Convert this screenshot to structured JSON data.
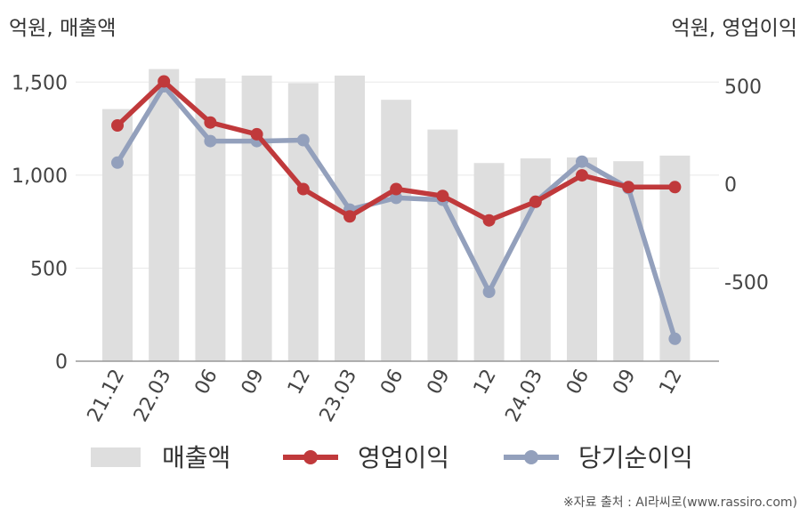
{
  "axis_titles": {
    "left": "억원, 매출액",
    "right": "억원, 영업이익"
  },
  "source": "※자료 출처 : AI라씨로(www.rassiro.com)",
  "colors": {
    "bar": "#dedede",
    "operating_profit": "#c0393b",
    "net_income": "#93a0bc",
    "axis": "#999999",
    "grid": "#e8e8e8"
  },
  "chart_data": {
    "type": "bar+line",
    "categories": [
      "21.12",
      "22.03",
      "06",
      "09",
      "12",
      "23.03",
      "06",
      "09",
      "12",
      "24.03",
      "06",
      "09",
      "12"
    ],
    "left_axis": {
      "ticks": [
        "0",
        "500",
        "1,000",
        "1,500"
      ],
      "ylim": [
        0,
        1750
      ]
    },
    "right_axis": {
      "ticks": [
        "-500",
        "0",
        "500"
      ],
      "ylim": [
        -900,
        600
      ]
    },
    "series": [
      {
        "name": "매출액",
        "type": "bar",
        "axis": "left",
        "values": [
          1355,
          1570,
          1520,
          1535,
          1495,
          1535,
          1405,
          1245,
          1065,
          1090,
          1095,
          1075,
          1105
        ]
      },
      {
        "name": "영업이익",
        "type": "line",
        "axis": "right",
        "values": [
          300,
          525,
          315,
          255,
          -25,
          -165,
          -25,
          -60,
          -185,
          -90,
          45,
          -15,
          -15
        ]
      },
      {
        "name": "당기순이익",
        "type": "line",
        "axis": "right",
        "values": [
          110,
          500,
          220,
          220,
          225,
          -130,
          -70,
          -80,
          -550,
          -90,
          115,
          -20,
          -790
        ]
      }
    ]
  }
}
